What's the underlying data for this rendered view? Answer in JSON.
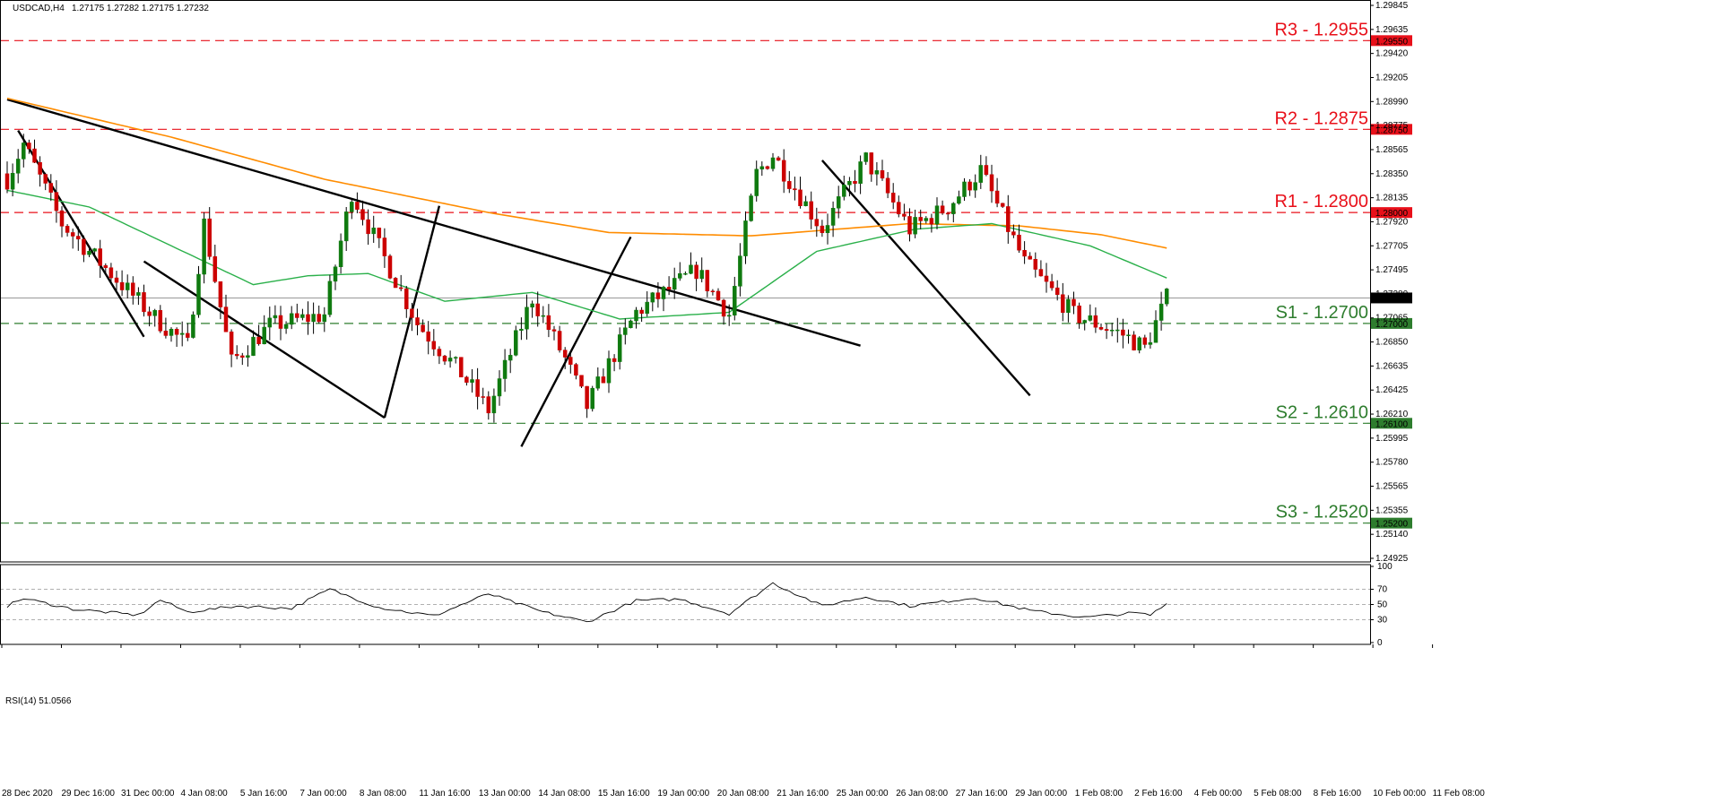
{
  "header": {
    "symbol": "USDCAD,H4",
    "ohlc": "1.27175 1.27282 1.27175 1.27232"
  },
  "rsi_header": "RSI(14) 51.0566",
  "colors": {
    "bull": "#0f7a0f",
    "bear": "#cc0000",
    "ma_fast": "#2ab04a",
    "ma_slow": "#ff8c00",
    "resistance": "#e8101a",
    "support": "#2e7d2e",
    "trend": "#000000"
  },
  "current_price_label": "1.27232",
  "levels": [
    {
      "price": 1.2955,
      "label": "R3 - 1.2955",
      "tag": "1.29550",
      "kind": "resistance"
    },
    {
      "price": 1.2875,
      "label": "R2 - 1.2875",
      "tag": "1.28750",
      "kind": "resistance"
    },
    {
      "price": 1.28,
      "label": "R1 - 1.2800",
      "tag": "1.28000",
      "kind": "resistance"
    },
    {
      "price": 1.27,
      "label": "S1 - 1.2700",
      "tag": "1.27000",
      "kind": "support"
    },
    {
      "price": 1.261,
      "label": "S2 - 1.2610",
      "tag": "1.26100",
      "kind": "support"
    },
    {
      "price": 1.252,
      "label": "S3 - 1.2520",
      "tag": "1.25200",
      "kind": "support"
    }
  ],
  "y_ticks": [
    "1.29845",
    "1.29635",
    "1.29420",
    "1.29205",
    "1.28990",
    "1.28775",
    "1.28565",
    "1.28350",
    "1.28135",
    "1.27920",
    "1.27705",
    "1.27495",
    "1.27280",
    "1.27065",
    "1.26850",
    "1.26635",
    "1.26425",
    "1.26210",
    "1.25995",
    "1.25780",
    "1.25565",
    "1.25355",
    "1.25140",
    "1.24925"
  ],
  "rsi_ticks": [
    "100",
    "70",
    "50",
    "30",
    "0"
  ],
  "x_ticks": [
    "28 Dec 2020",
    "29 Dec 16:00",
    "31 Dec 00:00",
    "4 Jan 08:00",
    "5 Jan 16:00",
    "7 Jan 00:00",
    "8 Jan 08:00",
    "11 Jan 16:00",
    "13 Jan 00:00",
    "14 Jan 08:00",
    "15 Jan 16:00",
    "19 Jan 00:00",
    "20 Jan 08:00",
    "21 Jan 16:00",
    "25 Jan 00:00",
    "26 Jan 08:00",
    "27 Jan 16:00",
    "29 Jan 00:00",
    "1 Feb 08:00",
    "2 Feb 16:00",
    "4 Feb 00:00",
    "5 Feb 08:00",
    "8 Feb 16:00",
    "10 Feb 00:00",
    "11 Feb 08:00"
  ],
  "chart_data": {
    "type": "candlestick",
    "title": "USDCAD,H4",
    "ylim": [
      1.2485,
      1.299
    ],
    "anchors": [
      {
        "i": 0,
        "p": 1.283
      },
      {
        "i": 3,
        "p": 1.2862
      },
      {
        "i": 10,
        "p": 1.279
      },
      {
        "i": 20,
        "p": 1.274
      },
      {
        "i": 27,
        "p": 1.2705
      },
      {
        "i": 33,
        "p": 1.268
      },
      {
        "i": 36,
        "p": 1.279
      },
      {
        "i": 41,
        "p": 1.2665
      },
      {
        "i": 48,
        "p": 1.2698
      },
      {
        "i": 58,
        "p": 1.2708
      },
      {
        "i": 63,
        "p": 1.2818
      },
      {
        "i": 75,
        "p": 1.27
      },
      {
        "i": 83,
        "p": 1.2655
      },
      {
        "i": 88,
        "p": 1.2622
      },
      {
        "i": 96,
        "p": 1.2723
      },
      {
        "i": 102,
        "p": 1.2668
      },
      {
        "i": 106,
        "p": 1.2625
      },
      {
        "i": 115,
        "p": 1.271
      },
      {
        "i": 126,
        "p": 1.2748
      },
      {
        "i": 132,
        "p": 1.2708
      },
      {
        "i": 137,
        "p": 1.2835
      },
      {
        "i": 140,
        "p": 1.2852
      },
      {
        "i": 149,
        "p": 1.2785
      },
      {
        "i": 157,
        "p": 1.2848
      },
      {
        "i": 165,
        "p": 1.2785
      },
      {
        "i": 172,
        "p": 1.2805
      },
      {
        "i": 178,
        "p": 1.2838
      },
      {
        "i": 186,
        "p": 1.2755
      },
      {
        "i": 195,
        "p": 1.2708
      },
      {
        "i": 204,
        "p": 1.269
      },
      {
        "i": 208,
        "p": 1.2678
      },
      {
        "i": 212,
        "p": 1.2723
      }
    ],
    "rsi_anchors": [
      {
        "i": 0,
        "v": 48
      },
      {
        "i": 3,
        "v": 58
      },
      {
        "i": 12,
        "v": 44
      },
      {
        "i": 24,
        "v": 36
      },
      {
        "i": 28,
        "v": 56
      },
      {
        "i": 33,
        "v": 40
      },
      {
        "i": 42,
        "v": 48
      },
      {
        "i": 52,
        "v": 45
      },
      {
        "i": 59,
        "v": 70
      },
      {
        "i": 68,
        "v": 46
      },
      {
        "i": 78,
        "v": 35
      },
      {
        "i": 88,
        "v": 64
      },
      {
        "i": 98,
        "v": 40
      },
      {
        "i": 106,
        "v": 27
      },
      {
        "i": 115,
        "v": 55
      },
      {
        "i": 123,
        "v": 57
      },
      {
        "i": 132,
        "v": 38
      },
      {
        "i": 140,
        "v": 78
      },
      {
        "i": 149,
        "v": 48
      },
      {
        "i": 157,
        "v": 60
      },
      {
        "i": 165,
        "v": 48
      },
      {
        "i": 177,
        "v": 59
      },
      {
        "i": 187,
        "v": 42
      },
      {
        "i": 197,
        "v": 33
      },
      {
        "i": 206,
        "v": 39
      },
      {
        "i": 209,
        "v": 36
      },
      {
        "i": 212,
        "v": 51
      }
    ],
    "ma_slow": [
      {
        "i": 0,
        "p": 1.2903
      },
      {
        "i": 30,
        "p": 1.2868
      },
      {
        "i": 58,
        "p": 1.283
      },
      {
        "i": 88,
        "p": 1.28
      },
      {
        "i": 110,
        "p": 1.2782
      },
      {
        "i": 136,
        "p": 1.2779
      },
      {
        "i": 165,
        "p": 1.279
      },
      {
        "i": 185,
        "p": 1.2788
      },
      {
        "i": 200,
        "p": 1.278
      },
      {
        "i": 212,
        "p": 1.2768
      }
    ],
    "ma_fast": [
      {
        "i": 0,
        "p": 1.282
      },
      {
        "i": 15,
        "p": 1.2805
      },
      {
        "i": 30,
        "p": 1.277
      },
      {
        "i": 45,
        "p": 1.2735
      },
      {
        "i": 55,
        "p": 1.2743
      },
      {
        "i": 66,
        "p": 1.2745
      },
      {
        "i": 80,
        "p": 1.272
      },
      {
        "i": 96,
        "p": 1.2728
      },
      {
        "i": 112,
        "p": 1.2704
      },
      {
        "i": 132,
        "p": 1.271
      },
      {
        "i": 148,
        "p": 1.2765
      },
      {
        "i": 166,
        "p": 1.2785
      },
      {
        "i": 180,
        "p": 1.279
      },
      {
        "i": 198,
        "p": 1.277
      },
      {
        "i": 212,
        "p": 1.2741
      }
    ],
    "trendlines": [
      {
        "i1": 0,
        "p1": 1.2902,
        "i2": 156,
        "p2": 1.268
      },
      {
        "i1": 2,
        "p1": 1.2874,
        "i2": 25,
        "p2": 1.2688
      },
      {
        "i1": 25,
        "p1": 1.2756,
        "i2": 69,
        "p2": 1.2615
      },
      {
        "i1": 69,
        "p1": 1.2615,
        "i2": 79,
        "p2": 1.2806
      },
      {
        "i1": 94,
        "p1": 1.2589,
        "i2": 114,
        "p2": 1.2778
      },
      {
        "i1": 149,
        "p1": 1.2847,
        "i2": 187,
        "p2": 1.2635
      }
    ]
  }
}
